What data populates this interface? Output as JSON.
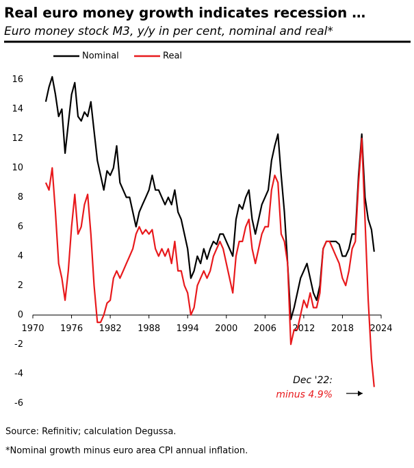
{
  "chart_data": {
    "type": "line",
    "title": "Real euro money growth indicates recession …",
    "subtitle": "Euro money stock M3, y/y in per cent, nominal and real*",
    "source": "Source: Refinitiv; calculation Degussa.",
    "note": "*Nominal growth minus euro area CPI annual inflation.",
    "annotation": {
      "date": "Dec '22:",
      "text": "minus 4.9%"
    },
    "xlim": [
      1970,
      2024
    ],
    "xticks": [
      1970,
      1976,
      1982,
      1988,
      1994,
      2000,
      2006,
      2012,
      2018,
      2024
    ],
    "ylim": [
      -6.5,
      17
    ],
    "yticks": [
      -6,
      -4,
      -2,
      0,
      2,
      4,
      6,
      8,
      10,
      12,
      14,
      16
    ],
    "x": [
      1972,
      1972.5,
      1973,
      1973.5,
      1974,
      1974.5,
      1975,
      1975.5,
      1976,
      1976.5,
      1977,
      1977.5,
      1978,
      1978.5,
      1979,
      1979.5,
      1980,
      1980.5,
      1981,
      1981.5,
      1982,
      1982.5,
      1983,
      1983.5,
      1984,
      1984.5,
      1985,
      1985.5,
      1986,
      1986.5,
      1987,
      1987.5,
      1988,
      1988.5,
      1989,
      1989.5,
      1990,
      1990.5,
      1991,
      1991.5,
      1992,
      1992.5,
      1993,
      1993.5,
      1994,
      1994.5,
      1995,
      1995.5,
      1996,
      1996.5,
      1997,
      1997.5,
      1998,
      1998.5,
      1999,
      1999.5,
      2000,
      2000.5,
      2001,
      2001.5,
      2002,
      2002.5,
      2003,
      2003.5,
      2004,
      2004.5,
      2005,
      2005.5,
      2006,
      2006.5,
      2007,
      2007.5,
      2008,
      2008.5,
      2009,
      2009.5,
      2010,
      2010.5,
      2011,
      2011.5,
      2012,
      2012.5,
      2013,
      2013.5,
      2014,
      2014.5,
      2015,
      2015.5,
      2016,
      2016.5,
      2017,
      2017.5,
      2018,
      2018.5,
      2019,
      2019.5,
      2020,
      2020.5,
      2021,
      2021.5,
      2022,
      2022.5,
      2022.92
    ],
    "series": [
      {
        "name": "Nominal",
        "color": "#000000",
        "values": [
          14.5,
          15.5,
          16.2,
          15.0,
          13.5,
          14.0,
          11.0,
          13.0,
          15.0,
          15.8,
          13.5,
          13.2,
          13.8,
          13.5,
          14.5,
          12.5,
          10.5,
          9.5,
          8.5,
          9.8,
          9.5,
          10.0,
          11.5,
          9.0,
          8.5,
          8.0,
          8.0,
          7.0,
          6.0,
          7.0,
          7.5,
          8.0,
          8.5,
          9.5,
          8.5,
          8.5,
          8.0,
          7.5,
          8.0,
          7.5,
          8.5,
          7.0,
          6.5,
          5.5,
          4.5,
          2.5,
          3.0,
          4.0,
          3.5,
          4.5,
          3.8,
          4.5,
          5.0,
          4.8,
          5.5,
          5.5,
          5.0,
          4.5,
          4.0,
          6.5,
          7.5,
          7.2,
          8.0,
          8.5,
          6.5,
          5.5,
          6.5,
          7.5,
          8.0,
          8.5,
          10.5,
          11.5,
          12.3,
          9.5,
          7.0,
          3.5,
          -0.3,
          0.5,
          1.5,
          2.5,
          3.0,
          3.5,
          2.5,
          1.5,
          1.0,
          2.0,
          4.5,
          5.0,
          5.0,
          5.0,
          5.0,
          4.8,
          4.0,
          4.0,
          4.5,
          5.5,
          5.5,
          9.5,
          12.3,
          8.0,
          6.5,
          5.8,
          4.3
        ]
      },
      {
        "name": "Real",
        "color": "#e8191c",
        "values": [
          9.0,
          8.5,
          10.0,
          7.0,
          3.5,
          2.5,
          1.0,
          3.0,
          6.0,
          8.2,
          5.5,
          6.0,
          7.5,
          8.2,
          5.5,
          2.0,
          -0.5,
          -0.5,
          0.0,
          0.8,
          1.0,
          2.5,
          3.0,
          2.5,
          3.0,
          3.5,
          4.0,
          4.5,
          5.5,
          6.0,
          5.5,
          5.8,
          5.5,
          5.8,
          4.5,
          4.0,
          4.5,
          4.0,
          4.5,
          3.5,
          5.0,
          3.0,
          3.0,
          2.0,
          1.5,
          0.0,
          0.5,
          2.0,
          2.5,
          3.0,
          2.5,
          3.0,
          4.0,
          4.5,
          5.0,
          4.5,
          3.5,
          2.5,
          1.5,
          4.0,
          5.0,
          5.0,
          6.0,
          6.5,
          4.5,
          3.5,
          4.5,
          5.5,
          6.0,
          6.0,
          8.5,
          9.5,
          9.0,
          5.5,
          5.0,
          3.5,
          -2.0,
          -1.0,
          -1.0,
          0.0,
          1.0,
          0.5,
          1.5,
          0.5,
          0.5,
          1.5,
          4.5,
          5.0,
          5.0,
          4.5,
          4.0,
          3.5,
          2.5,
          2.0,
          3.0,
          4.5,
          5.0,
          9.0,
          12.0,
          6.5,
          1.0,
          -3.0,
          -4.9
        ]
      }
    ]
  }
}
